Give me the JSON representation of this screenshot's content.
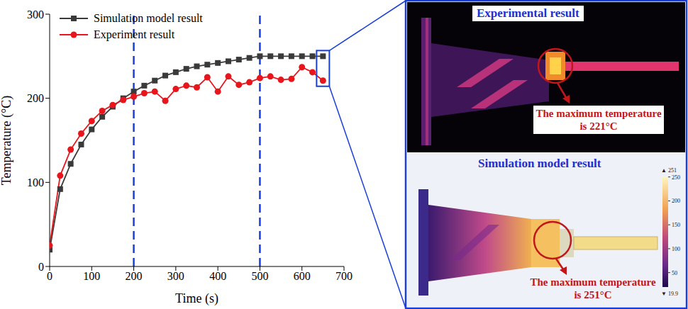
{
  "chart_data": {
    "type": "line",
    "x_label": "Time (s)",
    "y_label": "Temperature (°C)",
    "x": [
      0,
      25,
      50,
      75,
      100,
      125,
      150,
      175,
      200,
      225,
      250,
      275,
      300,
      325,
      350,
      375,
      400,
      425,
      450,
      475,
      500,
      525,
      550,
      575,
      600,
      625,
      650
    ],
    "series": [
      {
        "name": "Simulation model result",
        "color": "#3a3a3a",
        "marker": "square",
        "values": [
          20,
          92,
          122,
          145,
          163,
          178,
          190,
          200,
          208,
          215,
          221,
          227,
          231,
          235,
          238,
          240,
          242,
          244,
          246,
          248,
          250,
          250,
          250,
          250,
          250,
          250,
          250
        ]
      },
      {
        "name": "Experiment result",
        "color": "#e8161c",
        "marker": "circle",
        "values": [
          25,
          108,
          139,
          158,
          173,
          185,
          192,
          198,
          202,
          206,
          208,
          197,
          211,
          215,
          213,
          225,
          208,
          226,
          216,
          219,
          224,
          226,
          222,
          223,
          237,
          231,
          221
        ]
      }
    ],
    "xlim": [
      0,
      700
    ],
    "xticks": [
      0,
      100,
      200,
      300,
      400,
      500,
      600,
      700
    ],
    "ylim": [
      0,
      300
    ],
    "yticks": [
      0,
      100,
      200,
      300
    ],
    "grid": false,
    "legend": "upper left",
    "reference_x": [
      200,
      500
    ]
  },
  "panels": {
    "experiment": {
      "title": "Experimental result",
      "annotation": "The maximum temperature is 221°C"
    },
    "simulation": {
      "title": "Simulation model result",
      "annotation": "The maximum temperature is 251°C",
      "colorbar": {
        "range": [
          19.9,
          251
        ],
        "ticks": [
          50,
          100,
          150,
          200,
          250
        ],
        "max_label": "▲ 251",
        "min_label": "▼ 19.9"
      }
    }
  }
}
